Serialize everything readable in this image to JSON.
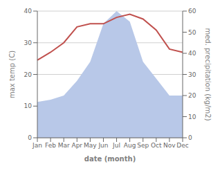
{
  "chart_data": {
    "type": "line",
    "xlabel": "date (month)",
    "ylabel": "max temp (C)",
    "y2label": "med. precipitation (kg/m2)",
    "categories": [
      "Jan",
      "Feb",
      "Mar",
      "Apr",
      "May",
      "Jun",
      "Jul",
      "Aug",
      "Sep",
      "Oct",
      "Nov",
      "Dec"
    ],
    "series": [
      {
        "type": "area",
        "color": "#b8c8e8",
        "axis": "y2",
        "values": [
          17,
          18,
          20,
          27,
          36,
          54,
          60,
          55,
          36,
          28,
          20,
          20
        ]
      },
      {
        "type": "line",
        "color": "#c0504d",
        "values": [
          24.5,
          27.0,
          30.0,
          35.0,
          36.0,
          36.0,
          38.0,
          39.0,
          37.5,
          34.0,
          28.0,
          27.0
        ]
      }
    ],
    "ylim": [
      0,
      40
    ],
    "yticks": [
      0,
      10,
      20,
      30,
      40
    ],
    "y2lim": [
      0,
      60
    ],
    "y2ticks": [
      0,
      10,
      20,
      30,
      40,
      50,
      60
    ],
    "grid": true
  }
}
